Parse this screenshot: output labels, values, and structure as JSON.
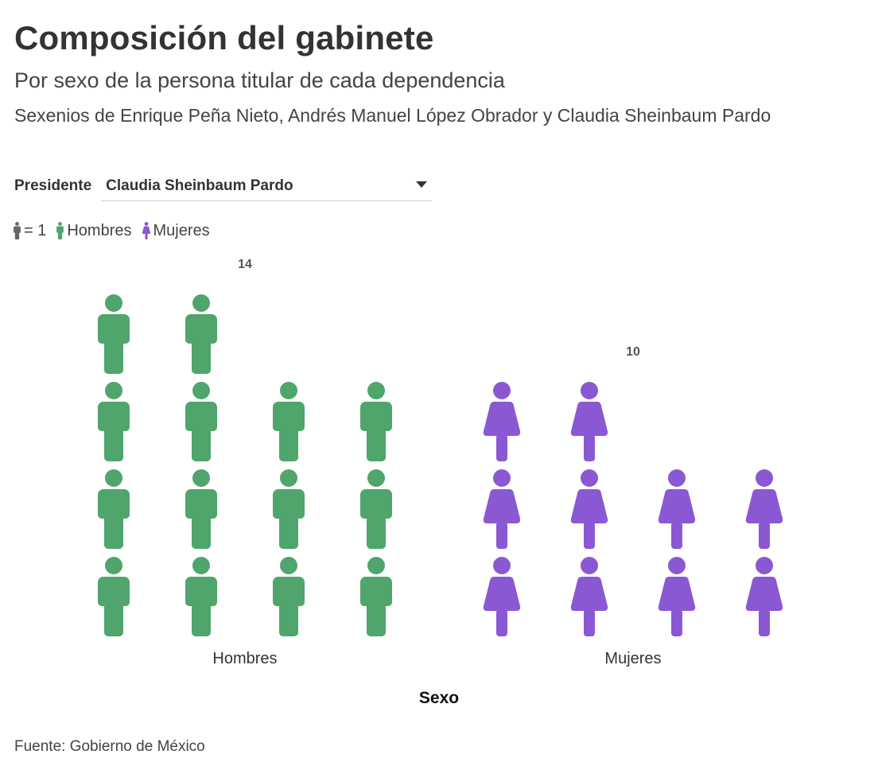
{
  "header": {
    "title": "Composición del gabinete",
    "subtitle": "Por sexo de la persona titular de cada dependencia",
    "description": "Sexenios de Enrique Peña Nieto, Andrés Manuel López Obrador y Claudia Sheinbaum Pardo"
  },
  "control": {
    "label": "Presidente",
    "selected": "Claudia Sheinbaum Pardo",
    "icon": "caret-down-icon"
  },
  "legend": {
    "unit_label": "= 1",
    "items": [
      {
        "label": "Hombres",
        "color": "#4fa56b",
        "icon": "man-icon"
      },
      {
        "label": "Mujeres",
        "color": "#8b58d3",
        "icon": "woman-icon"
      }
    ],
    "unit_color": "#666666"
  },
  "chart_data": {
    "type": "pictogram",
    "categories": [
      "Hombres",
      "Mujeres"
    ],
    "values": [
      14,
      10
    ],
    "unit": 1,
    "xlabel": "Sexo",
    "colors": [
      "#4fa56b",
      "#8b58d3"
    ],
    "icons": [
      "man-icon",
      "woman-icon"
    ]
  },
  "footer": {
    "source": "Fuente: Gobierno de México"
  }
}
